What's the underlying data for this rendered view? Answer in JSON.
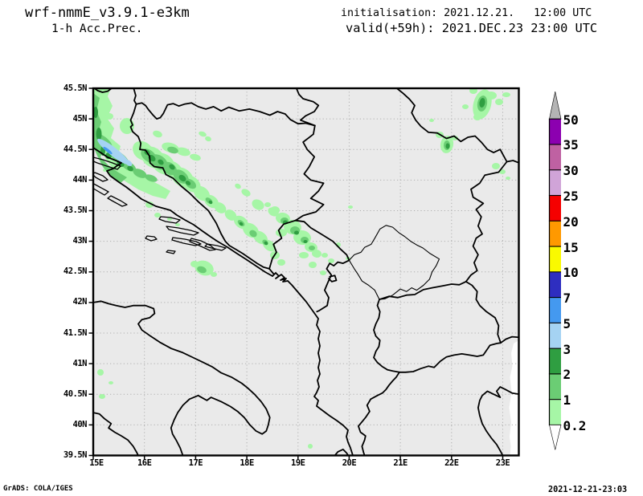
{
  "header": {
    "model": "wrf-nmmE_v3.9.1-e3km",
    "product": "1-h Acc.Prec.",
    "init_line": "initialisation: 2021.12.21.   12:00 UTC",
    "valid_line": "valid(+59h): 2021.DEC.23 23:00 UTC"
  },
  "axes": {
    "lat_labels": [
      "45.5N",
      "45N",
      "44.5N",
      "44N",
      "43.5N",
      "43N",
      "42.5N",
      "42N",
      "41.5N",
      "41N",
      "40.5N",
      "40N",
      "39.5N"
    ],
    "lon_labels": [
      "15E",
      "16E",
      "17E",
      "18E",
      "19E",
      "20E",
      "21E",
      "22E",
      "23E"
    ]
  },
  "colorbar": {
    "labels_top_to_bottom": [
      "50",
      "35",
      "30",
      "25",
      "20",
      "15",
      "10",
      "7",
      "5",
      "3",
      "2",
      "1",
      "0.2"
    ],
    "segment_colors_top_to_bottom": [
      "#8c00b0",
      "#bf61a2",
      "#d0a4d8",
      "#f50000",
      "#ff9900",
      "#fafa00",
      "#2e2ec0",
      "#4499f0",
      "#a5d3f3",
      "#2f9e41",
      "#6bcd74",
      "#a6f6a6"
    ],
    "over_color": "#b4b4b4",
    "under_color": "#ffffff"
  },
  "map": {
    "background": "#eaeaea",
    "grid_color": "#b0b0b0",
    "border_color": "#000000",
    "precip_colors": {
      "light_green": "#a6f6a6",
      "green": "#6bcd74",
      "dark_green": "#2f9e41",
      "light_blue": "#a5d3f3",
      "blue": "#4499f0"
    }
  },
  "footer": {
    "left": "GrADS: COLA/IGES",
    "right": "2021-12-21-23:03"
  }
}
